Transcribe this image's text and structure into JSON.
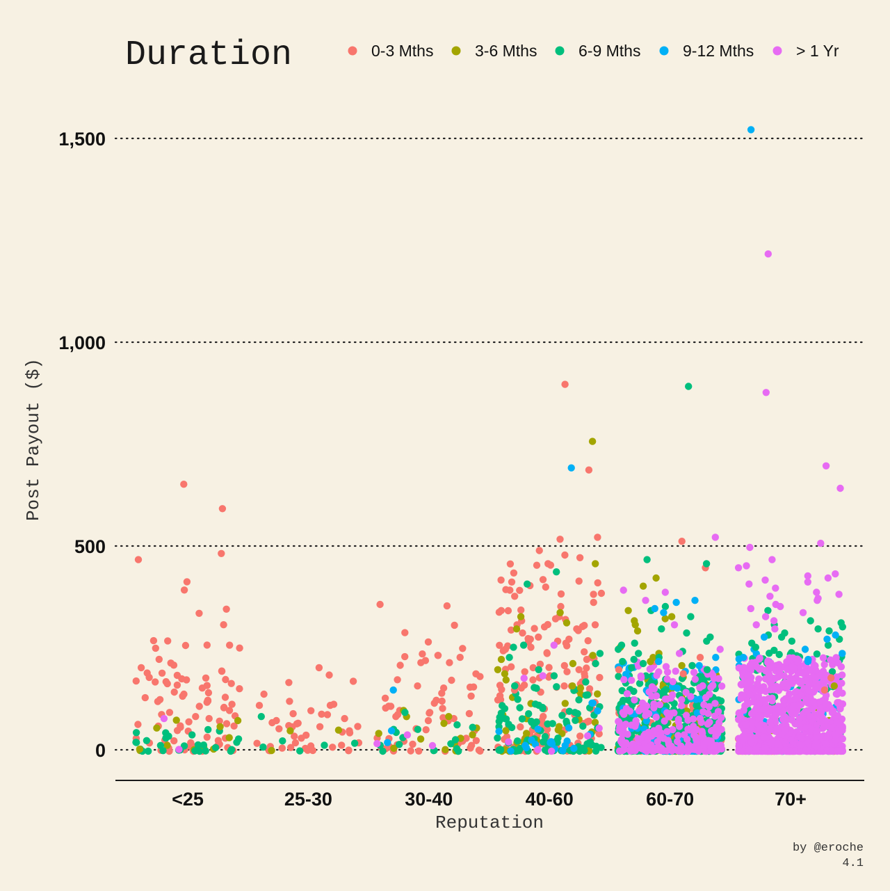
{
  "legend": {
    "title": "Duration",
    "items": [
      {
        "label": "0-3 Mths",
        "color": "#f8766d"
      },
      {
        "label": "3-6 Mths",
        "color": "#a3a500"
      },
      {
        "label": "6-9 Mths",
        "color": "#00bf7d"
      },
      {
        "label": "9-12 Mths",
        "color": "#00b0f6"
      },
      {
        "label": "> 1 Yr",
        "color": "#e76bf3"
      }
    ]
  },
  "credit": {
    "line1": "by @eroche",
    "line2": "4.1"
  },
  "chart_data": {
    "type": "scatter",
    "subtype": "jitter",
    "xlabel": "Reputation",
    "ylabel": "Post Payout ($)",
    "categories": [
      "<25",
      "25-30",
      "30-40",
      "40-60",
      "60-70",
      "70+"
    ],
    "yticks": [
      0,
      500,
      1000,
      1500
    ],
    "ytick_labels": [
      "0",
      "500",
      "1,000",
      "1,500"
    ],
    "ylim": [
      -75,
      1640
    ],
    "grid": "horizontal dotted",
    "legend_position": "top",
    "background": "#f7f1e3",
    "series": [
      {
        "name": "0-3 Mths",
        "color": "#f8766d",
        "bulk": [
          [
            0,
            0,
            70,
            420
          ],
          [
            1,
            0,
            35,
            200
          ],
          [
            2,
            0,
            55,
            380
          ],
          [
            3,
            0,
            120,
            500
          ],
          [
            4,
            0,
            90,
            120
          ],
          [
            5,
            0,
            40,
            60
          ]
        ],
        "points": [
          [
            "<25",
            655
          ],
          [
            "<25",
            595
          ],
          [
            "<25",
            485
          ],
          [
            "<25",
            470
          ],
          [
            "<25",
            260
          ],
          [
            "<25",
            205
          ],
          [
            "<25",
            170
          ],
          [
            "<25",
            155
          ],
          [
            "<25",
            145
          ],
          [
            "<25",
            140
          ],
          [
            "<25",
            135
          ],
          [
            "<25",
            125
          ],
          [
            "<25",
            120
          ],
          [
            "<25",
            115
          ],
          [
            "<25",
            110
          ],
          [
            "<25",
            100
          ],
          [
            "<25",
            95
          ],
          [
            "<25",
            90
          ],
          [
            "<25",
            85
          ],
          [
            "<25",
            80
          ],
          [
            "25-30",
            205
          ],
          [
            "25-30",
            140
          ],
          [
            "25-30",
            115
          ],
          [
            "25-30",
            80
          ],
          [
            "25-30",
            75
          ],
          [
            "25-30",
            70
          ],
          [
            "25-30",
            60
          ],
          [
            "25-30",
            55
          ],
          [
            "25-30",
            50
          ],
          [
            "25-30",
            45
          ],
          [
            "30-40",
            235
          ],
          [
            "30-40",
            160
          ],
          [
            "30-40",
            155
          ],
          [
            "30-40",
            130
          ],
          [
            "30-40",
            125
          ],
          [
            "30-40",
            110
          ],
          [
            "30-40",
            105
          ],
          [
            "30-40",
            100
          ],
          [
            "30-40",
            95
          ],
          [
            "30-40",
            90
          ],
          [
            "30-40",
            85
          ],
          [
            "30-40",
            80
          ],
          [
            "40-60",
            900
          ],
          [
            "40-60",
            690
          ],
          [
            "40-60",
            525
          ],
          [
            "40-60",
            520
          ],
          [
            "40-60",
            420
          ],
          [
            "40-60",
            415
          ],
          [
            "40-60",
            395
          ],
          [
            "40-60",
            385
          ],
          [
            "40-60",
            380
          ],
          [
            "40-60",
            365
          ],
          [
            "40-60",
            355
          ],
          [
            "40-60",
            345
          ],
          [
            "40-60",
            330
          ],
          [
            "40-60",
            320
          ],
          [
            "40-60",
            310
          ],
          [
            "40-60",
            305
          ],
          [
            "40-60",
            300
          ],
          [
            "40-60",
            290
          ],
          [
            "40-60",
            280
          ],
          [
            "40-60",
            275
          ],
          [
            "40-60",
            270
          ],
          [
            "40-60",
            265
          ],
          [
            "40-60",
            255
          ],
          [
            "40-60",
            250
          ],
          [
            "40-60",
            240
          ],
          [
            "40-60",
            230
          ],
          [
            "40-60",
            225
          ],
          [
            "40-60",
            215
          ],
          [
            "40-60",
            210
          ],
          [
            "40-60",
            205
          ],
          [
            "40-60",
            200
          ],
          [
            "40-60",
            195
          ],
          [
            "40-60",
            190
          ],
          [
            "40-60",
            185
          ],
          [
            "40-60",
            180
          ],
          [
            "40-60",
            175
          ],
          [
            "40-60",
            170
          ],
          [
            "40-60",
            165
          ],
          [
            "40-60",
            160
          ],
          [
            "40-60",
            155
          ],
          [
            "40-60",
            150
          ],
          [
            "60-70",
            515
          ],
          [
            "60-70",
            450
          ],
          [
            "60-70",
            230
          ],
          [
            "60-70",
            220
          ],
          [
            "60-70",
            210
          ],
          [
            "60-70",
            200
          ],
          [
            "60-70",
            190
          ],
          [
            "70+",
            180
          ],
          [
            "70+",
            150
          ]
        ]
      },
      {
        "name": "3-6 Mths",
        "color": "#a3a500",
        "bulk": [
          [
            0,
            0,
            10,
            80
          ],
          [
            1,
            0,
            3,
            60
          ],
          [
            2,
            0,
            12,
            100
          ],
          [
            3,
            0,
            30,
            150
          ],
          [
            4,
            0,
            80,
            200
          ],
          [
            5,
            0,
            30,
            120
          ]
        ],
        "points": [
          [
            "<25",
            75
          ],
          [
            "<25",
            60
          ],
          [
            "<25",
            5
          ],
          [
            "30-40",
            100
          ],
          [
            "30-40",
            85
          ],
          [
            "40-60",
            760
          ],
          [
            "40-60",
            460
          ],
          [
            "40-60",
            340
          ],
          [
            "40-60",
            330
          ],
          [
            "40-60",
            315
          ],
          [
            "40-60",
            300
          ],
          [
            "40-60",
            235
          ],
          [
            "40-60",
            225
          ],
          [
            "40-60",
            215
          ],
          [
            "40-60",
            200
          ],
          [
            "40-60",
            190
          ],
          [
            "40-60",
            175
          ],
          [
            "40-60",
            160
          ],
          [
            "40-60",
            155
          ],
          [
            "60-70",
            425
          ],
          [
            "60-70",
            405
          ],
          [
            "60-70",
            345
          ],
          [
            "60-70",
            330
          ],
          [
            "60-70",
            325
          ],
          [
            "60-70",
            320
          ],
          [
            "60-70",
            310
          ],
          [
            "60-70",
            295
          ],
          [
            "60-70",
            255
          ],
          [
            "60-70",
            240
          ],
          [
            "60-70",
            230
          ],
          [
            "60-70",
            220
          ],
          [
            "60-70",
            210
          ],
          [
            "70+",
            160
          ]
        ]
      },
      {
        "name": "6-9 Mths",
        "color": "#00bf7d",
        "bulk": [
          [
            0,
            0,
            25,
            60
          ],
          [
            1,
            0,
            5,
            30
          ],
          [
            2,
            0,
            15,
            80
          ],
          [
            3,
            0,
            90,
            160
          ],
          [
            4,
            0,
            450,
            190
          ],
          [
            5,
            0,
            130,
            250
          ]
        ],
        "points": [
          [
            "<25",
            45
          ],
          [
            "<25",
            40
          ],
          [
            "<25",
            30
          ],
          [
            "25-30",
            85
          ],
          [
            "30-40",
            95
          ],
          [
            "40-60",
            440
          ],
          [
            "40-60",
            410
          ],
          [
            "40-60",
            260
          ],
          [
            "40-60",
            255
          ],
          [
            "40-60",
            240
          ],
          [
            "40-60",
            230
          ],
          [
            "40-60",
            215
          ],
          [
            "40-60",
            200
          ],
          [
            "40-60",
            185
          ],
          [
            "40-60",
            170
          ],
          [
            "40-60",
            160
          ],
          [
            "60-70",
            895
          ],
          [
            "60-70",
            470
          ],
          [
            "60-70",
            460
          ],
          [
            "60-70",
            355
          ],
          [
            "60-70",
            345
          ],
          [
            "60-70",
            330
          ],
          [
            "60-70",
            300
          ],
          [
            "60-70",
            290
          ],
          [
            "60-70",
            280
          ],
          [
            "60-70",
            270
          ],
          [
            "60-70",
            265
          ],
          [
            "60-70",
            260
          ],
          [
            "60-70",
            250
          ],
          [
            "60-70",
            245
          ],
          [
            "60-70",
            240
          ],
          [
            "60-70",
            230
          ],
          [
            "60-70",
            225
          ],
          [
            "60-70",
            220
          ],
          [
            "60-70",
            215
          ],
          [
            "60-70",
            210
          ],
          [
            "60-70",
            205
          ],
          [
            "60-70",
            200
          ],
          [
            "70+",
            345
          ],
          [
            "70+",
            320
          ],
          [
            "70+",
            315
          ],
          [
            "70+",
            310
          ],
          [
            "70+",
            305
          ],
          [
            "70+",
            300
          ],
          [
            "70+",
            295
          ],
          [
            "70+",
            290
          ],
          [
            "70+",
            285
          ],
          [
            "70+",
            280
          ],
          [
            "70+",
            275
          ],
          [
            "70+",
            270
          ],
          [
            "70+",
            265
          ],
          [
            "70+",
            260
          ],
          [
            "70+",
            255
          ]
        ]
      },
      {
        "name": "9-12 Mths",
        "color": "#00b0f6",
        "bulk": [
          [
            2,
            0,
            2,
            70
          ],
          [
            3,
            0,
            20,
            130
          ],
          [
            4,
            0,
            60,
            220
          ],
          [
            5,
            0,
            60,
            250
          ]
        ],
        "points": [
          [
            "30-40",
            150
          ],
          [
            "40-60",
            695
          ],
          [
            "60-70",
            370
          ],
          [
            "60-70",
            365
          ],
          [
            "60-70",
            350
          ],
          [
            "60-70",
            340
          ],
          [
            "60-70",
            230
          ],
          [
            "60-70",
            220
          ],
          [
            "60-70",
            210
          ],
          [
            "70+",
            1525
          ],
          [
            "70+",
            285
          ],
          [
            "70+",
            280
          ],
          [
            "70+",
            275
          ],
          [
            "70+",
            250
          ],
          [
            "70+",
            240
          ],
          [
            "70+",
            230
          ],
          [
            "70+",
            225
          ],
          [
            "70+",
            220
          ]
        ]
      },
      {
        "name": "> 1 Yr",
        "color": "#e76bf3",
        "bulk": [
          [
            0,
            0,
            1,
            80
          ],
          [
            2,
            0,
            2,
            60
          ],
          [
            3,
            0,
            6,
            190
          ],
          [
            4,
            0,
            250,
            220
          ],
          [
            5,
            0,
            900,
            230
          ]
        ],
        "points": [
          [
            "<25",
            80
          ],
          [
            "30-40",
            40
          ],
          [
            "40-60",
            260
          ],
          [
            "40-60",
            185
          ],
          [
            "60-70",
            525
          ],
          [
            "60-70",
            395
          ],
          [
            "60-70",
            390
          ],
          [
            "60-70",
            370
          ],
          [
            "60-70",
            310
          ],
          [
            "60-70",
            250
          ],
          [
            "60-70",
            240
          ],
          [
            "70+",
            1220
          ],
          [
            "70+",
            880
          ],
          [
            "70+",
            700
          ],
          [
            "70+",
            645
          ],
          [
            "70+",
            510
          ],
          [
            "70+",
            500
          ],
          [
            "70+",
            470
          ],
          [
            "70+",
            455
          ],
          [
            "70+",
            450
          ],
          [
            "70+",
            435
          ],
          [
            "70+",
            430
          ],
          [
            "70+",
            425
          ],
          [
            "70+",
            420
          ],
          [
            "70+",
            415
          ],
          [
            "70+",
            410
          ],
          [
            "70+",
            400
          ],
          [
            "70+",
            390
          ],
          [
            "70+",
            385
          ],
          [
            "70+",
            380
          ],
          [
            "70+",
            375
          ],
          [
            "70+",
            370
          ],
          [
            "70+",
            360
          ],
          [
            "70+",
            355
          ],
          [
            "70+",
            350
          ],
          [
            "70+",
            340
          ],
          [
            "70+",
            330
          ],
          [
            "70+",
            320
          ],
          [
            "70+",
            310
          ],
          [
            "70+",
            300
          ]
        ]
      }
    ]
  }
}
